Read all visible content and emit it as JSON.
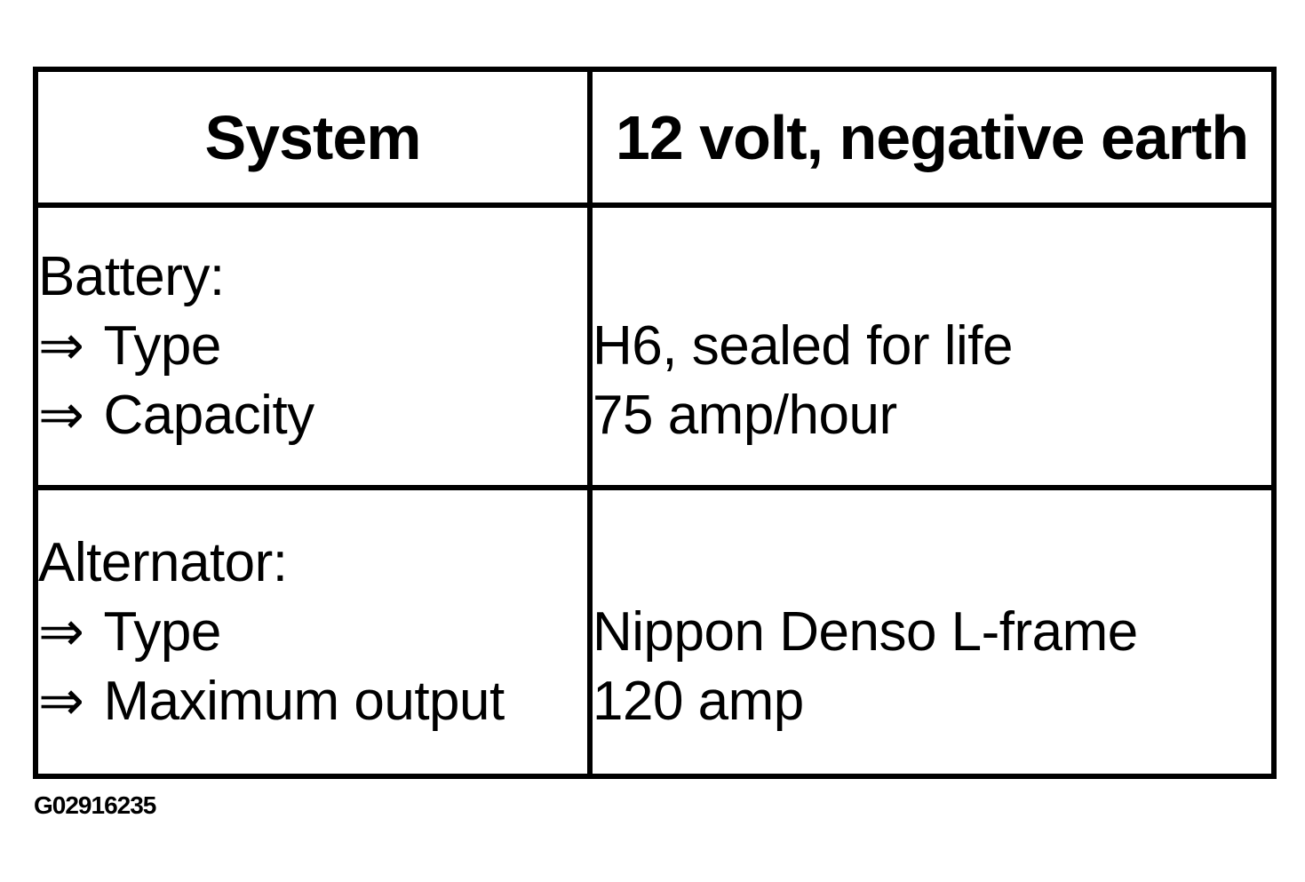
{
  "header": {
    "col_system": "System",
    "col_value": "12 volt, negative earth"
  },
  "arrow_glyph": "⇒",
  "rows": [
    {
      "heading": "Battery:",
      "items": [
        "Type",
        "Capacity"
      ],
      "values": [
        "H6, sealed for life",
        "75 amp/hour"
      ]
    },
    {
      "heading": "Alternator:",
      "items": [
        "Type",
        "Maximum output"
      ],
      "values": [
        "Nippon Denso L-frame",
        "120 amp"
      ]
    }
  ],
  "caption": "G02916235",
  "colors": {
    "text": "#000000",
    "border": "#000000",
    "background": "#ffffff"
  }
}
